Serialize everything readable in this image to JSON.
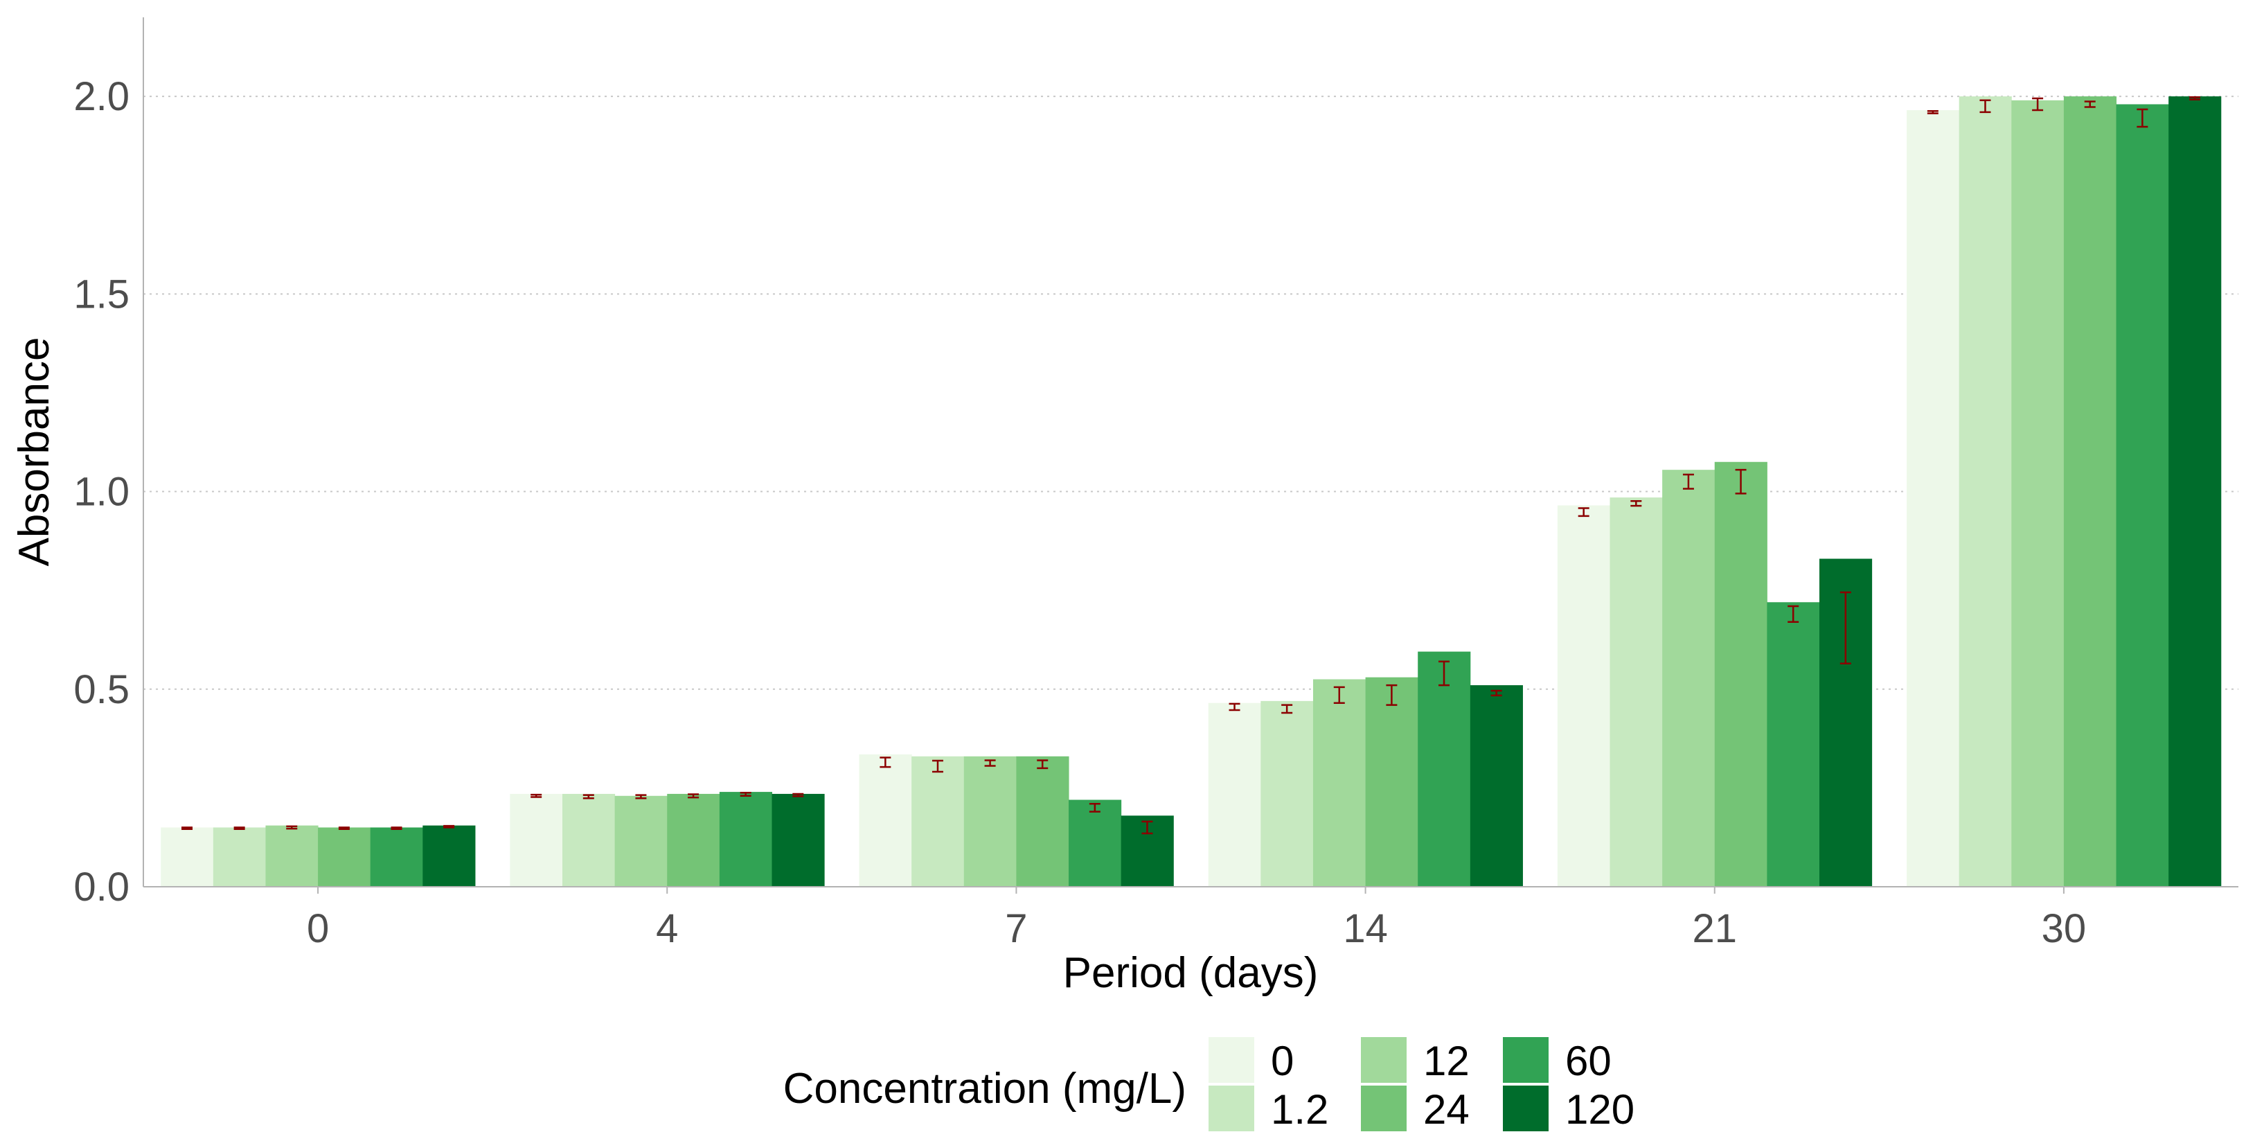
{
  "chart_data": {
    "type": "bar",
    "title": "",
    "xlabel": "Period (days)",
    "ylabel": "Absorbance",
    "ylim": [
      0,
      2.2
    ],
    "y_ticks": [
      "0.0",
      "0.5",
      "1.0",
      "1.5",
      "2.0"
    ],
    "y_tick_values": [
      0,
      0.5,
      1.0,
      1.5,
      2.0
    ],
    "grid": "horizontal dotted",
    "categories": [
      "0",
      "4",
      "7",
      "14",
      "21",
      "30"
    ],
    "legend": {
      "title": "Concentration (mg/L)",
      "placement": "bottom",
      "entries": [
        "0",
        "1.2",
        "12",
        "24",
        "60",
        "120"
      ]
    },
    "error_bar_color": "#8b0000",
    "series": [
      {
        "name": "0",
        "color": "#edf8e9",
        "values": [
          0.15,
          0.235,
          0.335,
          0.465,
          0.965,
          1.965
        ],
        "mean": [
          0.148,
          0.23,
          0.315,
          0.455,
          0.948,
          1.96
        ],
        "err": [
          0.002,
          0.003,
          0.012,
          0.008,
          0.01,
          0.003
        ]
      },
      {
        "name": "1.2",
        "color": "#c7e9c0",
        "values": [
          0.15,
          0.235,
          0.33,
          0.47,
          0.985,
          2.0
        ],
        "mean": [
          0.148,
          0.228,
          0.305,
          0.45,
          0.97,
          1.975
        ],
        "err": [
          0.002,
          0.004,
          0.014,
          0.01,
          0.006,
          0.015
        ]
      },
      {
        "name": "12",
        "color": "#a1d99b",
        "values": [
          0.155,
          0.23,
          0.33,
          0.525,
          1.055,
          1.99
        ],
        "mean": [
          0.15,
          0.228,
          0.313,
          0.485,
          1.025,
          1.98
        ],
        "err": [
          0.003,
          0.004,
          0.007,
          0.02,
          0.018,
          0.015
        ]
      },
      {
        "name": "24",
        "color": "#74c476",
        "values": [
          0.15,
          0.235,
          0.33,
          0.53,
          1.075,
          2.0
        ],
        "mean": [
          0.148,
          0.23,
          0.31,
          0.485,
          1.025,
          1.98
        ],
        "err": [
          0.002,
          0.004,
          0.01,
          0.025,
          0.03,
          0.007
        ]
      },
      {
        "name": "60",
        "color": "#31a354",
        "values": [
          0.15,
          0.24,
          0.22,
          0.595,
          0.72,
          1.98
        ],
        "mean": [
          0.148,
          0.234,
          0.2,
          0.54,
          0.69,
          1.945
        ],
        "err": [
          0.002,
          0.004,
          0.01,
          0.03,
          0.02,
          0.022
        ]
      },
      {
        "name": "120",
        "color": "#006d2c",
        "values": [
          0.155,
          0.235,
          0.18,
          0.51,
          0.83,
          2.0
        ],
        "mean": [
          0.152,
          0.232,
          0.15,
          0.49,
          0.655,
          1.995
        ],
        "err": [
          0.002,
          0.003,
          0.015,
          0.006,
          0.09,
          0.003
        ]
      }
    ]
  }
}
